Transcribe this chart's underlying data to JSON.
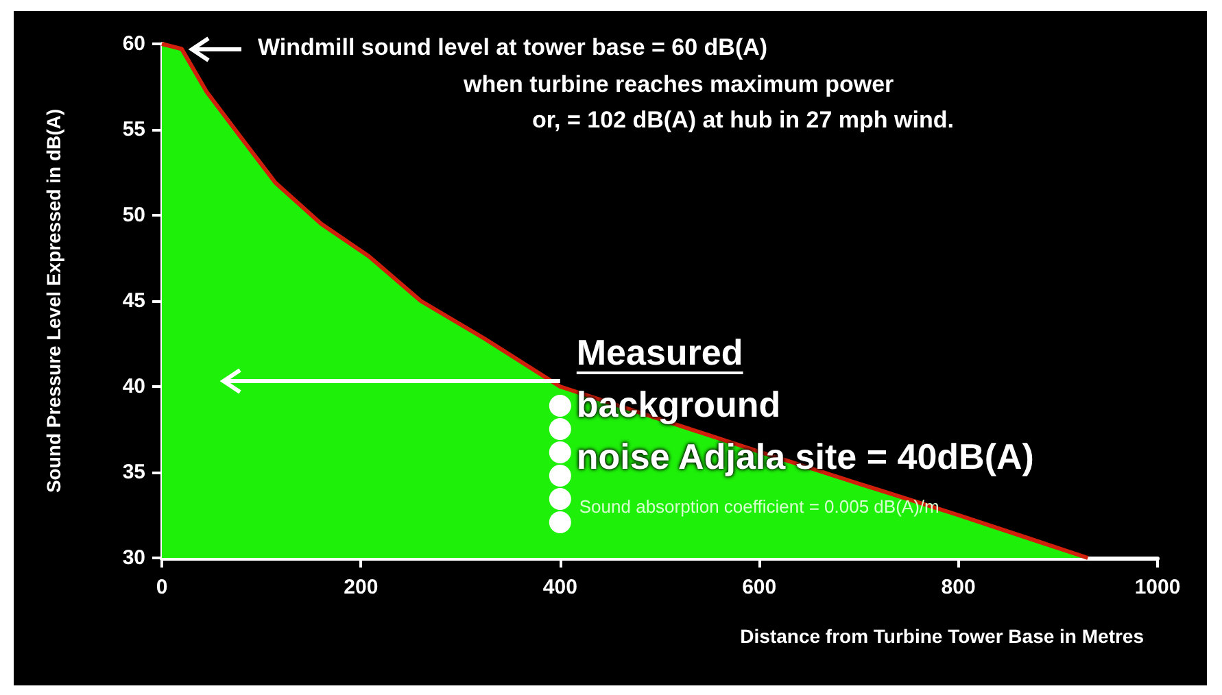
{
  "chart_data": {
    "type": "area",
    "xlabel": "Distance from Turbine Tower Base in Metres",
    "ylabel": "Sound Pressure Level Expressed in dB(A)",
    "x": [
      0,
      20,
      45,
      80,
      114,
      160,
      208,
      260,
      324,
      400,
      500,
      600,
      691,
      800,
      930
    ],
    "series": [
      {
        "color": "#1ef00a",
        "values": [
          60,
          59.7,
          57.2,
          54.5,
          51.9,
          49.5,
          47.6,
          45.0,
          42.8,
          40.0,
          38.1,
          36.2,
          34.5,
          32.5,
          30.0
        ]
      }
    ],
    "xlim": [
      0,
      1000
    ],
    "xticks": [
      0,
      200,
      400,
      600,
      800,
      1000
    ],
    "ylim": [
      30,
      60
    ],
    "yticks": [
      30,
      35,
      40,
      45,
      50,
      55,
      60
    ],
    "grid": false,
    "marker": "none",
    "annotations": [
      "Windmill sound level at tower base = 60 dB(A)",
      "when turbine reaches maximum power",
      "or, = 102 dB(A) at hub in 27 mph wind.",
      {
        "text": "Measured\nbackground\nnoise Adjala site = 40dB(A)",
        "x": 400,
        "y": 40
      },
      "Sound absorption coefficient = 0.005 dB(A)/m"
    ]
  }
}
